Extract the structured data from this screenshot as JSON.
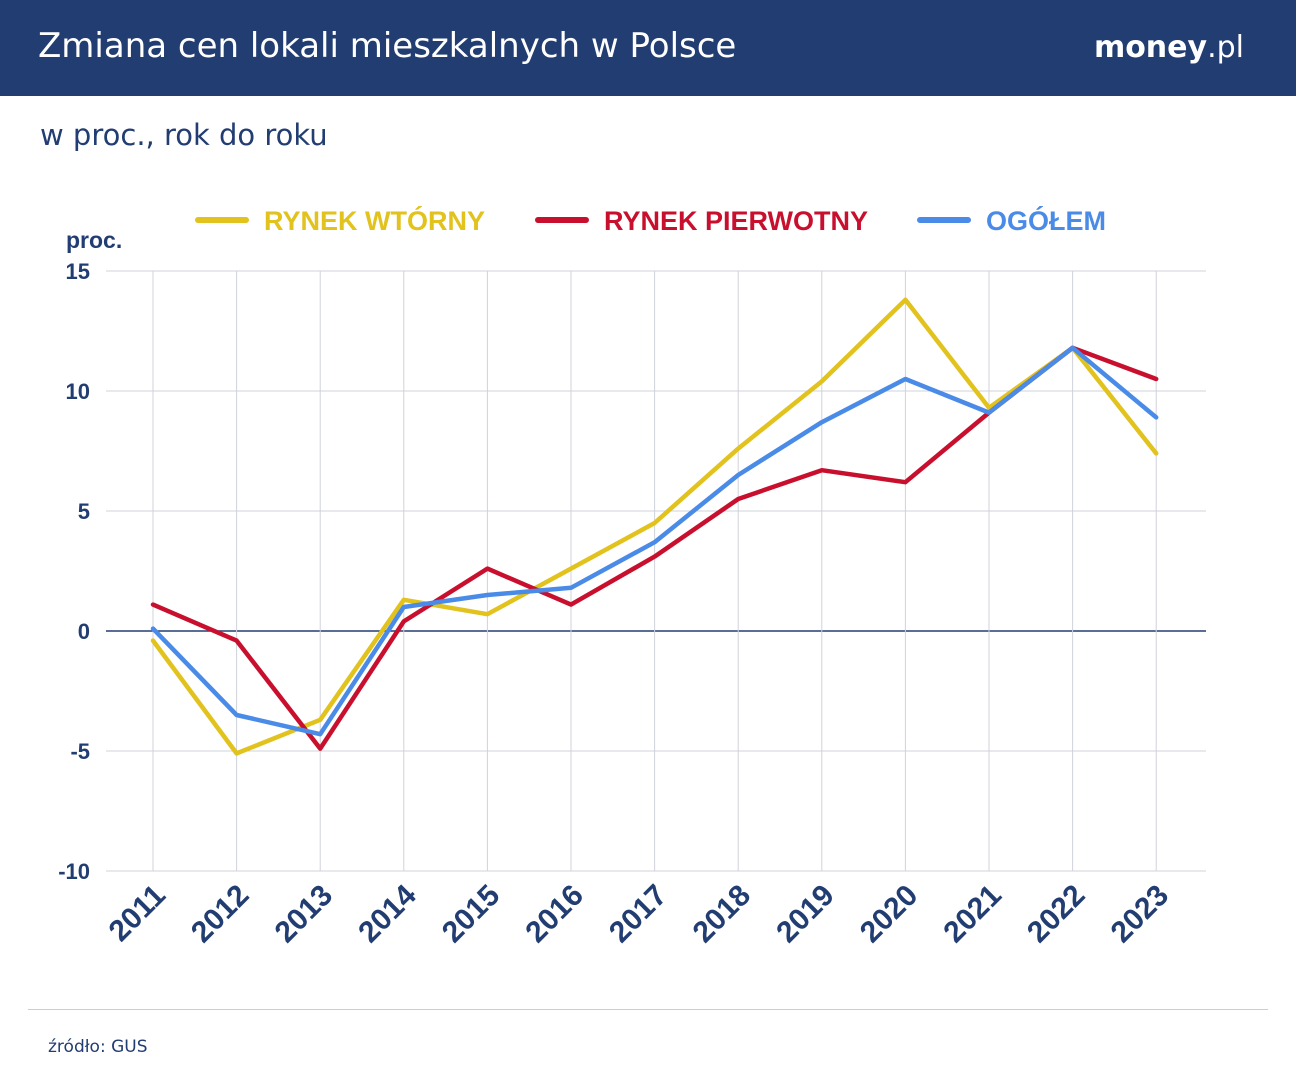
{
  "header": {
    "title": "Zmiana cen lokali mieszkalnych w Polsce",
    "logo_bold": "money",
    "logo_rest": ".pl"
  },
  "subtitle": "w proc., rok do roku",
  "source": "źródło: GUS",
  "colors": {
    "header_bg": "#223d72",
    "rynek_wtorny": "#e2c21d",
    "rynek_pierwotny": "#c8102e",
    "ogolem": "#4a8be8",
    "axis_text": "#223d72"
  },
  "chart_data": {
    "type": "line",
    "title": "Zmiana cen lokali mieszkalnych w Polsce",
    "subtitle": "w proc., rok do roku",
    "ylabel": "proc.",
    "xlabel": "",
    "ylim": [
      -10,
      15
    ],
    "yticks": [
      15,
      10,
      5,
      0,
      -5,
      -10
    ],
    "ytick_labels": [
      "15",
      "10",
      "5",
      "0",
      "-5",
      "-10"
    ],
    "grid": true,
    "legend_position": "top",
    "categories": [
      "2011",
      "2012",
      "2013",
      "2014",
      "2015",
      "2016",
      "2017",
      "2018",
      "2019",
      "2020",
      "2021",
      "2022",
      "2023"
    ],
    "series": [
      {
        "name": "RYNEK WTÓRNY",
        "color": "#e2c21d",
        "values": [
          -0.4,
          -5.1,
          -3.7,
          1.3,
          0.7,
          2.6,
          4.5,
          7.6,
          10.4,
          13.8,
          9.3,
          11.8,
          7.4
        ]
      },
      {
        "name": "RYNEK PIERWOTNY",
        "color": "#c8102e",
        "values": [
          1.1,
          -0.4,
          -4.9,
          0.4,
          2.6,
          1.1,
          3.1,
          5.5,
          6.7,
          6.2,
          9.1,
          11.8,
          10.5
        ]
      },
      {
        "name": "OGÓŁEM",
        "color": "#4a8be8",
        "values": [
          0.1,
          -3.5,
          -4.3,
          1.0,
          1.5,
          1.8,
          3.7,
          6.5,
          8.7,
          10.5,
          9.1,
          11.8,
          8.9
        ]
      }
    ]
  }
}
